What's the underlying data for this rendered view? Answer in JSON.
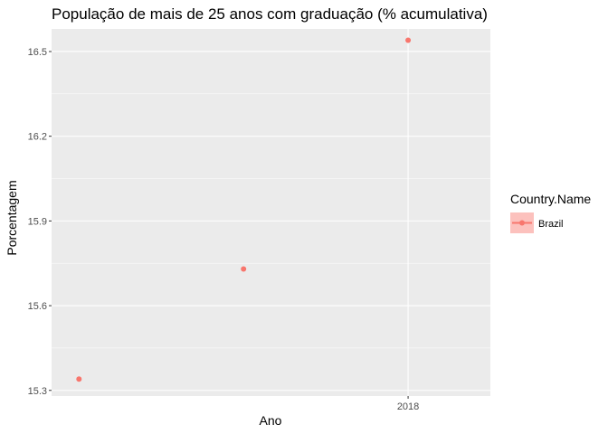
{
  "colors": {
    "panel_background": "#EBEBEB",
    "grid_major": "#FFFFFF",
    "series": "#F8766D"
  },
  "chart_data": {
    "type": "scatter",
    "title": "População de mais de 25 anos com graduação (% acumulativa)",
    "xlabel": "Ano",
    "ylabel": "Porcentagem",
    "x_ticks": [
      "2018"
    ],
    "y_ticks": [
      "15.3",
      "15.6",
      "15.9",
      "16.2",
      "16.5"
    ],
    "ylim": [
      15.28,
      16.58
    ],
    "grid": true,
    "legend_position": "right",
    "legend": {
      "title": "Country.Name"
    },
    "series": [
      {
        "name": "Brazil",
        "x": [
          "2012",
          "2015",
          "2018"
        ],
        "values": [
          15.34,
          15.73,
          16.54
        ]
      }
    ]
  }
}
